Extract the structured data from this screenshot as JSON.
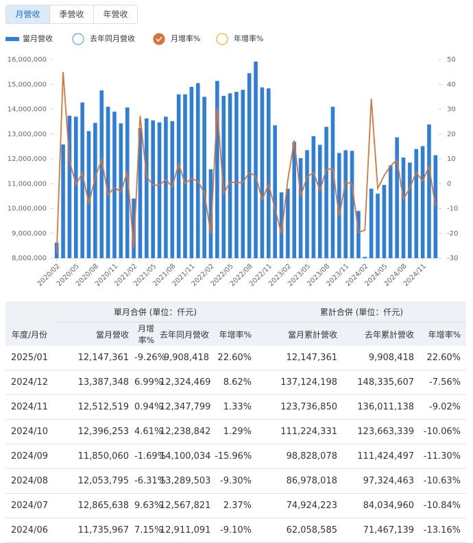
{
  "tabs": [
    "月營收",
    "季營收",
    "年營收"
  ],
  "active_tab": 0,
  "chart_data": {
    "type": "bar",
    "categories": [
      "2020/02",
      null,
      null,
      "2020/05",
      null,
      null,
      "2020/08",
      null,
      null,
      "2020/11",
      null,
      null,
      "2021/02",
      null,
      null,
      "2021/05",
      null,
      null,
      "2021/08",
      null,
      null,
      "2021/11",
      null,
      null,
      "2022/02",
      null,
      null,
      "2022/05",
      null,
      null,
      "2022/08",
      null,
      null,
      "2022/11",
      null,
      null,
      "2023/02",
      null,
      null,
      "2023/05",
      null,
      null,
      "2023/08",
      null,
      null,
      "2023/11",
      null,
      null,
      "2024/02",
      null,
      null,
      "2024/05",
      null,
      null,
      "2024/08",
      null,
      null,
      "2024/11",
      null,
      null
    ],
    "series": [
      {
        "name": "當月營收",
        "type": "bar",
        "color": "#2f7ed8",
        "visible": true,
        "values": [
          8630000,
          12580000,
          13740000,
          13700000,
          14270000,
          13120000,
          13450000,
          14760000,
          14100000,
          13900000,
          13430000,
          14070000,
          10400000,
          13240000,
          13630000,
          13550000,
          13470000,
          13700000,
          13520000,
          14600000,
          14600000,
          14900000,
          15050000,
          14500000,
          11580000,
          15140000,
          14540000,
          14640000,
          14700000,
          14780000,
          15450000,
          15920000,
          14880000,
          14840000,
          13350000,
          10650000,
          10800000,
          12680000,
          12030000,
          12350000,
          12911091,
          12567821,
          13289503,
          14100034,
          12238842,
          12347799,
          12324469,
          9900000,
          8050000,
          10800000,
          10600000,
          10950000,
          11735967,
          12865638,
          12053795,
          11850060,
          12396253,
          12512519,
          13387348,
          12147361
        ]
      },
      {
        "name": "去年同月營收",
        "type": "bar",
        "color": "#5ba7e0",
        "visible": false
      },
      {
        "name": "月增率%",
        "type": "line",
        "axis": "y2",
        "color": "#d4763b",
        "visible": true,
        "values": [
          -28,
          45,
          9.2,
          -0.3,
          4.2,
          -8.1,
          2.5,
          9.7,
          -4.5,
          -1.4,
          -3.4,
          4.8,
          -26.1,
          27.3,
          2.9,
          -0.6,
          -0.6,
          1.7,
          -1.3,
          8,
          0,
          2.1,
          1,
          -3.7,
          -20.1,
          30.7,
          -4,
          0.7,
          0.4,
          0.5,
          4.5,
          3,
          -6.5,
          -0.3,
          -10,
          -20.2,
          1.4,
          17.4,
          -5.1,
          2.7,
          4.5,
          -2.7,
          5.7,
          6.1,
          -13.2,
          0.9,
          -0.2,
          -19.6,
          -18.7,
          34.2,
          -1.9,
          3.3,
          7.15,
          9.63,
          -6.31,
          -1.69,
          4.61,
          0.94,
          6.99,
          -9.26
        ]
      },
      {
        "name": "年增率%",
        "type": "line",
        "axis": "y2",
        "color": "#d9b53a",
        "visible": false
      }
    ],
    "ylim": [
      8000000,
      16000000
    ],
    "yticks": [
      {
        "value": 8000000,
        "label": "8,000,000"
      },
      {
        "value": 9000000,
        "label": "9,000,000"
      },
      {
        "value": 10000000,
        "label": "10,000,000"
      },
      {
        "value": 11000000,
        "label": "11,000,000"
      },
      {
        "value": 12000000,
        "label": "12,000,000"
      },
      {
        "value": 13000000,
        "label": "13,000,000"
      },
      {
        "value": 14000000,
        "label": "14,000,000"
      },
      {
        "value": 15000000,
        "label": "15,000,000"
      },
      {
        "value": 16000000,
        "label": "16,000,000"
      }
    ],
    "y2lim": [
      -30,
      50
    ],
    "y2ticks": [
      -30,
      -20,
      -10,
      0,
      10,
      20,
      30,
      40,
      50
    ],
    "grid": false
  },
  "table": {
    "group_headers": [
      "單月合併 (單位：仟元)",
      "累計合併 (單位：仟元)"
    ],
    "columns": [
      "年度/月份",
      "當月營收",
      "月增率%",
      "去年同月營收",
      "年增率%",
      "當月累計營收",
      "去年累計營收",
      "年增率%"
    ],
    "rows": [
      [
        "2025/01",
        "12,147,361",
        "-9.26%",
        "9,908,418",
        "22.60%",
        "12,147,361",
        "9,908,418",
        "22.60%"
      ],
      [
        "2024/12",
        "13,387,348",
        "6.99%",
        "12,324,469",
        "8.62%",
        "137,124,198",
        "148,335,607",
        "-7.56%"
      ],
      [
        "2024/11",
        "12,512,519",
        "0.94%",
        "12,347,799",
        "1.33%",
        "123,736,850",
        "136,011,138",
        "-9.02%"
      ],
      [
        "2024/10",
        "12,396,253",
        "4.61%",
        "12,238,842",
        "1.29%",
        "111,224,331",
        "123,663,339",
        "-10.06%"
      ],
      [
        "2024/09",
        "11,850,060",
        "-1.69%",
        "14,100,034",
        "-15.96%",
        "98,828,078",
        "111,424,497",
        "-11.30%"
      ],
      [
        "2024/08",
        "12,053,795",
        "-6.31%",
        "13,289,503",
        "-9.30%",
        "86,978,018",
        "97,324,463",
        "-10.63%"
      ],
      [
        "2024/07",
        "12,865,638",
        "9.63%",
        "12,567,821",
        "2.37%",
        "74,924,223",
        "84,034,960",
        "-10.84%"
      ],
      [
        "2024/06",
        "11,735,967",
        "7.15%",
        "12,911,091",
        "-9.10%",
        "62,058,585",
        "71,467,139",
        "-13.16%"
      ]
    ]
  }
}
